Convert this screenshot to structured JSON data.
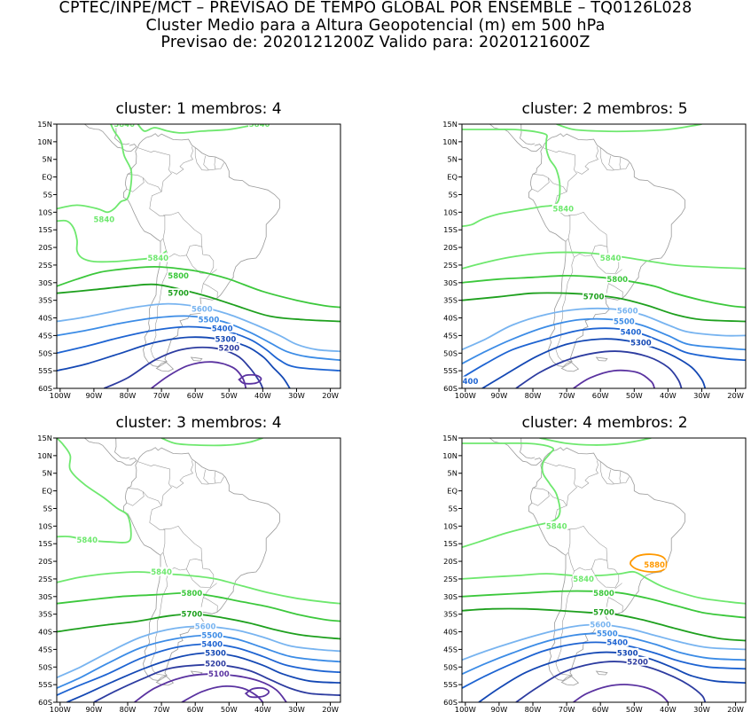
{
  "header": {
    "line1": "CPTEC/INPE/MCT – PREVISAO DE TEMPO GLOBAL POR ENSEMBLE – TQ0126L028",
    "line2": "Cluster Medio para a Altura Geopotencial (m) em 500 hPa",
    "line3": "Previsao de: 2020121200Z    Valido para: 2020121600Z"
  },
  "axes": {
    "lon_ticks": [
      "100W",
      "90W",
      "80W",
      "70W",
      "60W",
      "50W",
      "40W",
      "30W",
      "20W"
    ],
    "lat_ticks": [
      "15N",
      "10N",
      "5N",
      "EQ",
      "5S",
      "10S",
      "15S",
      "20S",
      "25S",
      "30S",
      "35S",
      "40S",
      "45S",
      "50S",
      "55S",
      "60S"
    ]
  },
  "colors": {
    "5880": "#ff9900",
    "5840": "#6ee86e",
    "5800": "#3cc83c",
    "5700": "#1ea01e",
    "5600": "#78b4f0",
    "5500": "#3c8ce6",
    "5400": "#1e64d2",
    "5300": "#1448b4",
    "5200": "#2d3ca0",
    "5100": "#5a32a0",
    "coast": "#9a9a9a",
    "border": "#9a9a9a"
  },
  "panels": [
    {
      "title": "cluster: 1   membros: 4",
      "labels": [
        {
          "v": "5840",
          "lon": -87,
          "lat": -12
        },
        {
          "v": "5840",
          "lon": -71,
          "lat": -23
        },
        {
          "v": "5840",
          "lon": -81,
          "lat": 15
        },
        {
          "v": "5840",
          "lon": -41,
          "lat": 15
        },
        {
          "v": "5800",
          "lon": -65,
          "lat": -28
        },
        {
          "v": "5700",
          "lon": -65,
          "lat": -33
        },
        {
          "v": "5600",
          "lon": -58,
          "lat": -37.5
        },
        {
          "v": "5500",
          "lon": -56,
          "lat": -40.5
        },
        {
          "v": "5400",
          "lon": -52,
          "lat": -43
        },
        {
          "v": "5300",
          "lon": -51,
          "lat": -46
        },
        {
          "v": "5200",
          "lon": -50,
          "lat": -48.5
        }
      ]
    },
    {
      "title": "cluster: 2   membros: 5",
      "labels": [
        {
          "v": "5840",
          "lon": -71,
          "lat": -9
        },
        {
          "v": "5840",
          "lon": -57,
          "lat": -23
        },
        {
          "v": "5800",
          "lon": -55,
          "lat": -29
        },
        {
          "v": "5700",
          "lon": -62,
          "lat": -34
        },
        {
          "v": "5600",
          "lon": -52,
          "lat": -38
        },
        {
          "v": "5500",
          "lon": -53,
          "lat": -41
        },
        {
          "v": "5400",
          "lon": -51,
          "lat": -44
        },
        {
          "v": "5300",
          "lon": -48,
          "lat": -47
        },
        {
          "v": "400",
          "lon": -98.5,
          "lat": -58
        }
      ]
    },
    {
      "title": "cluster: 3   membros: 4",
      "labels": [
        {
          "v": "5840",
          "lon": -92,
          "lat": -14
        },
        {
          "v": "5840",
          "lon": -70,
          "lat": -23
        },
        {
          "v": "5800",
          "lon": -61,
          "lat": -29
        },
        {
          "v": "5700",
          "lon": -61,
          "lat": -35
        },
        {
          "v": "5600",
          "lon": -57,
          "lat": -38.5
        },
        {
          "v": "5500",
          "lon": -55,
          "lat": -41
        },
        {
          "v": "5400",
          "lon": -55,
          "lat": -43.5
        },
        {
          "v": "5300",
          "lon": -54,
          "lat": -46
        },
        {
          "v": "5200",
          "lon": -54,
          "lat": -49
        },
        {
          "v": "5100",
          "lon": -53,
          "lat": -52
        }
      ]
    },
    {
      "title": "cluster: 4   membros: 2",
      "labels": [
        {
          "v": "5840",
          "lon": -73,
          "lat": -10
        },
        {
          "v": "5880",
          "lon": -44,
          "lat": -21
        },
        {
          "v": "5840",
          "lon": -65,
          "lat": -25
        },
        {
          "v": "5800",
          "lon": -59,
          "lat": -29
        },
        {
          "v": "5700",
          "lon": -59,
          "lat": -34.5
        },
        {
          "v": "5600",
          "lon": -60,
          "lat": -38
        },
        {
          "v": "5500",
          "lon": -58,
          "lat": -40.5
        },
        {
          "v": "5400",
          "lon": -55,
          "lat": -43
        },
        {
          "v": "5300",
          "lon": -52,
          "lat": -46
        },
        {
          "v": "5200",
          "lon": -49,
          "lat": -48.5
        }
      ]
    }
  ]
}
